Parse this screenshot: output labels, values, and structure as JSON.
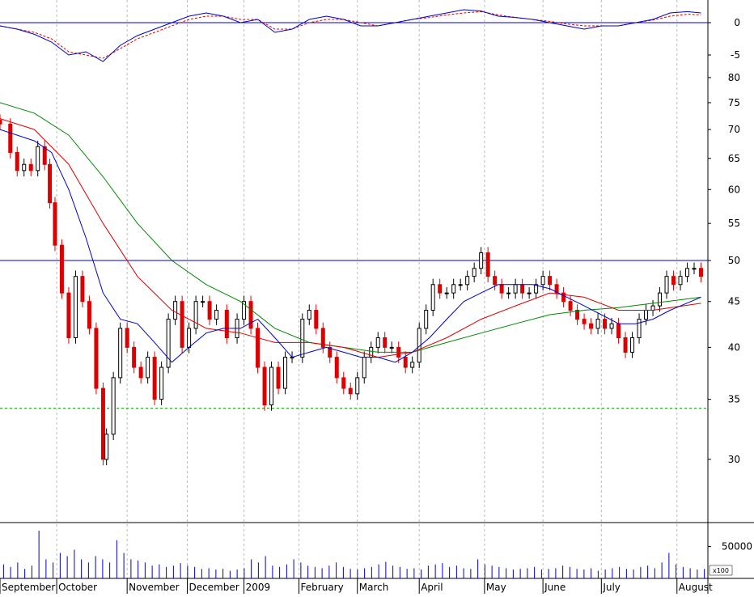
{
  "chart_data": {
    "type": "candlestick",
    "colors": {
      "background": "#ffffff",
      "up_candle": "#000000",
      "down_candle": "#dd0000",
      "ma_short": "#0000cc",
      "ma_medium": "#dd0000",
      "ma_long": "#008800",
      "horizontal_line": "#0000cc",
      "support_line": "#008800",
      "oscillator_main": "#0000cc",
      "oscillator_signal": "#dd0000",
      "volume": "#0000cc",
      "grid": "#bbbbbb"
    },
    "x_labels": [
      "September",
      "October",
      "November",
      "December",
      "2009",
      "February",
      "March",
      "April",
      "May",
      "June",
      "July",
      "August"
    ],
    "x_label_positions": [
      0,
      1.65,
      3.7,
      5.45,
      7.1,
      8.7,
      10.4,
      12.2,
      14.1,
      15.8,
      17.5,
      19.7
    ],
    "x_range": [
      0,
      20.6
    ],
    "price_panel": {
      "scale": "log",
      "ylim": [
        25.5,
        82
      ],
      "ticks": [
        30,
        35,
        40,
        45,
        50,
        55,
        60,
        65,
        70,
        75,
        80
      ],
      "horizontal_line": 50,
      "support_line": 34.2,
      "closes": [
        [
          0.0,
          71
        ],
        [
          0.3,
          66
        ],
        [
          0.5,
          63
        ],
        [
          0.7,
          64
        ],
        [
          0.9,
          63
        ],
        [
          1.1,
          67
        ],
        [
          1.3,
          64
        ],
        [
          1.45,
          58
        ],
        [
          1.6,
          52
        ],
        [
          1.8,
          46
        ],
        [
          2.0,
          41
        ],
        [
          2.2,
          48
        ],
        [
          2.4,
          45
        ],
        [
          2.6,
          42
        ],
        [
          2.8,
          36
        ],
        [
          3.0,
          30
        ],
        [
          3.1,
          32
        ],
        [
          3.3,
          37
        ],
        [
          3.5,
          42
        ],
        [
          3.7,
          40
        ],
        [
          3.9,
          38
        ],
        [
          4.1,
          37
        ],
        [
          4.3,
          39
        ],
        [
          4.5,
          35
        ],
        [
          4.7,
          38
        ],
        [
          4.9,
          43
        ],
        [
          5.1,
          45
        ],
        [
          5.3,
          40
        ],
        [
          5.5,
          42
        ],
        [
          5.7,
          45
        ],
        [
          5.9,
          45
        ],
        [
          6.1,
          43
        ],
        [
          6.3,
          44
        ],
        [
          6.6,
          41
        ],
        [
          6.9,
          43
        ],
        [
          7.1,
          45
        ],
        [
          7.3,
          42
        ],
        [
          7.5,
          38
        ],
        [
          7.7,
          34.5
        ],
        [
          7.9,
          38
        ],
        [
          8.1,
          36
        ],
        [
          8.3,
          39
        ],
        [
          8.5,
          39
        ],
        [
          8.8,
          43
        ],
        [
          9.0,
          44
        ],
        [
          9.2,
          42
        ],
        [
          9.4,
          40
        ],
        [
          9.6,
          39
        ],
        [
          9.8,
          37
        ],
        [
          10.0,
          36
        ],
        [
          10.2,
          35.5
        ],
        [
          10.4,
          37
        ],
        [
          10.6,
          39
        ],
        [
          10.8,
          40
        ],
        [
          11.0,
          41
        ],
        [
          11.2,
          40
        ],
        [
          11.4,
          40
        ],
        [
          11.6,
          39
        ],
        [
          11.8,
          38
        ],
        [
          12.0,
          38.5
        ],
        [
          12.2,
          42
        ],
        [
          12.4,
          44
        ],
        [
          12.6,
          47
        ],
        [
          12.8,
          46
        ],
        [
          13.0,
          46
        ],
        [
          13.2,
          47
        ],
        [
          13.4,
          47
        ],
        [
          13.6,
          48
        ],
        [
          13.8,
          49
        ],
        [
          14.0,
          51
        ],
        [
          14.2,
          48
        ],
        [
          14.4,
          47
        ],
        [
          14.6,
          46
        ],
        [
          14.8,
          46
        ],
        [
          15.0,
          47
        ],
        [
          15.2,
          46
        ],
        [
          15.4,
          46
        ],
        [
          15.6,
          47
        ],
        [
          15.8,
          48
        ],
        [
          16.0,
          47
        ],
        [
          16.2,
          46
        ],
        [
          16.4,
          45
        ],
        [
          16.6,
          44
        ],
        [
          16.8,
          43
        ],
        [
          17.0,
          42.5
        ],
        [
          17.2,
          42
        ],
        [
          17.4,
          43
        ],
        [
          17.6,
          42
        ],
        [
          17.8,
          42.5
        ],
        [
          18.0,
          41
        ],
        [
          18.2,
          39.5
        ],
        [
          18.4,
          41
        ],
        [
          18.6,
          43
        ],
        [
          18.8,
          44
        ],
        [
          19.0,
          44.5
        ],
        [
          19.2,
          46
        ],
        [
          19.4,
          48
        ],
        [
          19.6,
          47
        ],
        [
          19.8,
          48
        ],
        [
          20.0,
          49
        ],
        [
          20.2,
          49
        ],
        [
          20.4,
          48
        ]
      ],
      "moving_averages": [
        {
          "color_key": "ma_long",
          "points": [
            [
              0,
              75
            ],
            [
              1,
              73
            ],
            [
              2,
              69
            ],
            [
              3,
              62
            ],
            [
              4,
              55
            ],
            [
              5,
              50
            ],
            [
              6,
              47
            ],
            [
              7,
              45
            ],
            [
              8,
              42
            ],
            [
              9,
              40.5
            ],
            [
              10,
              40
            ],
            [
              11,
              39.5
            ],
            [
              12,
              39.5
            ],
            [
              13,
              40.5
            ],
            [
              14,
              41.5
            ],
            [
              15,
              42.5
            ],
            [
              16,
              43.5
            ],
            [
              17,
              44
            ],
            [
              18,
              44.3
            ],
            [
              19,
              44.8
            ],
            [
              20.4,
              45.5
            ]
          ]
        },
        {
          "color_key": "ma_medium",
          "points": [
            [
              0,
              72
            ],
            [
              1,
              70
            ],
            [
              2,
              64
            ],
            [
              3,
              55
            ],
            [
              4,
              48
            ],
            [
              5,
              44
            ],
            [
              6,
              42
            ],
            [
              7,
              41.5
            ],
            [
              8,
              40.5
            ],
            [
              9,
              40.5
            ],
            [
              10,
              40
            ],
            [
              11,
              39
            ],
            [
              12,
              39.5
            ],
            [
              13,
              41
            ],
            [
              14,
              43
            ],
            [
              15,
              44.5
            ],
            [
              16,
              46
            ],
            [
              17,
              45.5
            ],
            [
              18,
              44
            ],
            [
              19,
              44
            ],
            [
              20.4,
              44.8
            ]
          ]
        },
        {
          "color_key": "ma_short",
          "points": [
            [
              0,
              70
            ],
            [
              1,
              68
            ],
            [
              1.5,
              66
            ],
            [
              2,
              60
            ],
            [
              2.5,
              53
            ],
            [
              3,
              46
            ],
            [
              3.5,
              43
            ],
            [
              4,
              42.5
            ],
            [
              4.5,
              40.5
            ],
            [
              5,
              38.5
            ],
            [
              5.5,
              40
            ],
            [
              6,
              41.5
            ],
            [
              6.5,
              42
            ],
            [
              7,
              42
            ],
            [
              7.5,
              43
            ],
            [
              8,
              41
            ],
            [
              8.5,
              39
            ],
            [
              9,
              39.5
            ],
            [
              9.5,
              40
            ],
            [
              10,
              39.5
            ],
            [
              10.5,
              39
            ],
            [
              11,
              39
            ],
            [
              11.5,
              38.5
            ],
            [
              12,
              39.5
            ],
            [
              12.5,
              41
            ],
            [
              13,
              43
            ],
            [
              13.5,
              45
            ],
            [
              14,
              46
            ],
            [
              14.5,
              47
            ],
            [
              15,
              47
            ],
            [
              15.5,
              47
            ],
            [
              16,
              46.5
            ],
            [
              16.5,
              45.5
            ],
            [
              17,
              44.5
            ],
            [
              17.5,
              43.5
            ],
            [
              18,
              42.5
            ],
            [
              18.5,
              42.5
            ],
            [
              19,
              43
            ],
            [
              19.5,
              44
            ],
            [
              20.4,
              45.5
            ]
          ]
        }
      ]
    },
    "oscillator_panel": {
      "ylim": [
        -7,
        3.5
      ],
      "ticks": [
        0,
        -5
      ],
      "zero_line": 0,
      "main": [
        [
          0,
          -0.5
        ],
        [
          0.5,
          -1
        ],
        [
          1,
          -1.8
        ],
        [
          1.5,
          -3
        ],
        [
          2,
          -5
        ],
        [
          2.5,
          -4.5
        ],
        [
          3,
          -6
        ],
        [
          3.5,
          -3.5
        ],
        [
          4,
          -2
        ],
        [
          4.5,
          -1
        ],
        [
          5,
          0
        ],
        [
          5.5,
          1
        ],
        [
          6,
          1.5
        ],
        [
          6.5,
          1
        ],
        [
          7,
          0
        ],
        [
          7.5,
          0.5
        ],
        [
          8,
          -1.5
        ],
        [
          8.5,
          -1
        ],
        [
          9,
          0.5
        ],
        [
          9.5,
          1
        ],
        [
          10,
          0.5
        ],
        [
          10.5,
          -0.5
        ],
        [
          11,
          -0.5
        ],
        [
          11.5,
          0
        ],
        [
          12,
          0.5
        ],
        [
          12.5,
          1
        ],
        [
          13,
          1.5
        ],
        [
          13.5,
          2
        ],
        [
          14,
          1.8
        ],
        [
          14.5,
          1
        ],
        [
          15,
          0.8
        ],
        [
          15.5,
          0.5
        ],
        [
          16,
          0
        ],
        [
          16.5,
          -0.5
        ],
        [
          17,
          -1
        ],
        [
          17.5,
          -0.5
        ],
        [
          18,
          -0.5
        ],
        [
          18.5,
          0
        ],
        [
          19,
          0.5
        ],
        [
          19.5,
          1.5
        ],
        [
          20,
          1.7
        ],
        [
          20.4,
          1.5
        ]
      ],
      "signal": [
        [
          0,
          -0.5
        ],
        [
          0.5,
          -1
        ],
        [
          1,
          -1.5
        ],
        [
          1.5,
          -2.5
        ],
        [
          2,
          -4.5
        ],
        [
          2.5,
          -5
        ],
        [
          3,
          -5.5
        ],
        [
          3.5,
          -4
        ],
        [
          4,
          -2.5
        ],
        [
          4.5,
          -1.5
        ],
        [
          5,
          -0.5
        ],
        [
          5.5,
          0.5
        ],
        [
          6,
          1
        ],
        [
          6.5,
          1
        ],
        [
          7,
          0.5
        ],
        [
          7.5,
          0.5
        ],
        [
          8,
          -1
        ],
        [
          8.5,
          -1
        ],
        [
          9,
          0
        ],
        [
          9.5,
          0.5
        ],
        [
          10,
          0.5
        ],
        [
          10.5,
          0
        ],
        [
          11,
          -0.5
        ],
        [
          11.5,
          0
        ],
        [
          12,
          0.5
        ],
        [
          12.5,
          0.8
        ],
        [
          13,
          1.2
        ],
        [
          13.5,
          1.5
        ],
        [
          14,
          1.7
        ],
        [
          14.5,
          1.2
        ],
        [
          15,
          0.8
        ],
        [
          15.5,
          0.5
        ],
        [
          16,
          0.2
        ],
        [
          16.5,
          -0.2
        ],
        [
          17,
          -0.5
        ],
        [
          17.5,
          -0.5
        ],
        [
          18,
          -0.5
        ],
        [
          18.5,
          0
        ],
        [
          19,
          0.4
        ],
        [
          19.5,
          1
        ],
        [
          20,
          1.3
        ],
        [
          20.4,
          1.2
        ]
      ]
    },
    "volume_panel": {
      "ylim": [
        0,
        80000
      ],
      "ticks": [
        50000
      ],
      "scale_label": "x100",
      "values": [
        22000,
        18000,
        25000,
        15000,
        20000,
        75000,
        30000,
        25000,
        40000,
        35000,
        45000,
        30000,
        25000,
        35000,
        30000,
        25000,
        60000,
        40000,
        30000,
        28000,
        25000,
        20000,
        22000,
        18000,
        20000,
        24000,
        20000,
        18000,
        15000,
        16000,
        14000,
        15000,
        12000,
        14000,
        16000,
        30000,
        25000,
        35000,
        20000,
        18000,
        22000,
        30000,
        25000,
        20000,
        18000,
        16000,
        20000,
        25000,
        18000,
        15000,
        14000,
        16000,
        18000,
        22000,
        26000,
        20000,
        18000,
        15000,
        16000,
        14000,
        20000,
        22000,
        24000,
        18000,
        20000,
        16000,
        15000,
        30000,
        22000,
        20000,
        18000,
        16000,
        14000,
        15000,
        16000,
        18000,
        14000,
        15000,
        16000,
        20000,
        18000,
        15000,
        14000,
        16000,
        12000,
        14000,
        16000,
        18000,
        15000,
        14000,
        18000,
        20000,
        16000,
        25000,
        40000,
        22000,
        18000,
        16000,
        14000,
        15000
      ]
    }
  }
}
